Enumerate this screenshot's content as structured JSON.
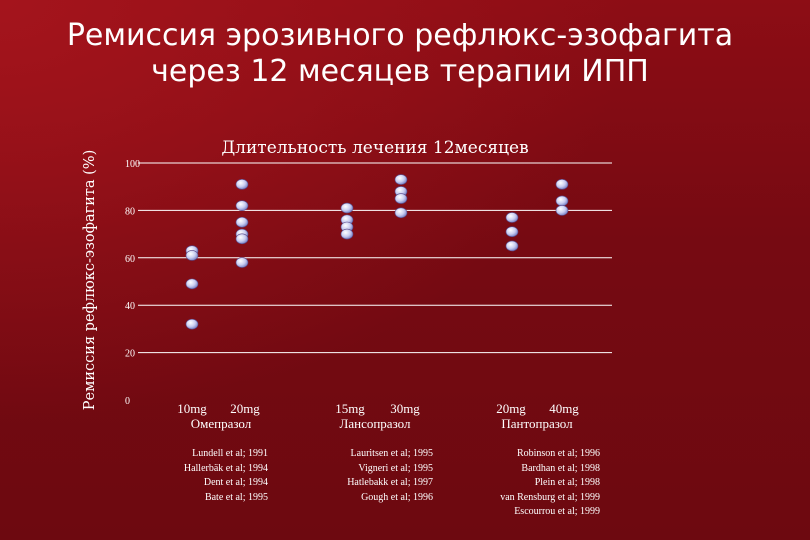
{
  "title": {
    "line1": "Ремиссия эрозивного рефлюкс-эзофагита",
    "line2": "через 12 месяцев терапии ИПП"
  },
  "colors": {
    "background": "#7a0a12",
    "text": "#ffffff",
    "gridline": "#ffffff",
    "marker": "#c9cdf0"
  },
  "chart_data": {
    "type": "scatter",
    "title": "Длительность лечения 12месяцев",
    "ylabel": "Ремиссия рефлюкс-эзофагита (%)",
    "ylim": [
      0,
      100
    ],
    "yticks": [
      0,
      20,
      40,
      60,
      80,
      100
    ],
    "grid": true,
    "groups": [
      {
        "drug": "Омепразол",
        "series": [
          {
            "dose": "10mg",
            "values": [
              63,
              61,
              49,
              32
            ]
          },
          {
            "dose": "20mg",
            "values": [
              91,
              82,
              75,
              70,
              68,
              58
            ]
          }
        ],
        "references": [
          "Lundell et al; 1991",
          "Hallerbäk et al; 1994",
          "Dent et al; 1994",
          "Bate et al; 1995"
        ]
      },
      {
        "drug": "Лансопразол",
        "series": [
          {
            "dose": "15mg",
            "values": [
              81,
              76,
              73,
              70
            ]
          },
          {
            "dose": "30mg",
            "values": [
              93,
              88,
              85,
              79
            ]
          }
        ],
        "references": [
          "Lauritsen et al; 1995",
          "Vigneri et al; 1995",
          "Hatlebakk et al; 1997",
          "Gough et al; 1996"
        ]
      },
      {
        "drug": "Пантопразол",
        "series": [
          {
            "dose": "20mg",
            "values": [
              77,
              71,
              65
            ]
          },
          {
            "dose": "40mg",
            "values": [
              91,
              84,
              80
            ]
          }
        ],
        "references": [
          "Robinson et al; 1996",
          "Bardhan et al; 1998",
          "Plein et al; 1998",
          "van Rensburg et al; 1999",
          "Escourrou et al; 1999"
        ]
      }
    ]
  }
}
